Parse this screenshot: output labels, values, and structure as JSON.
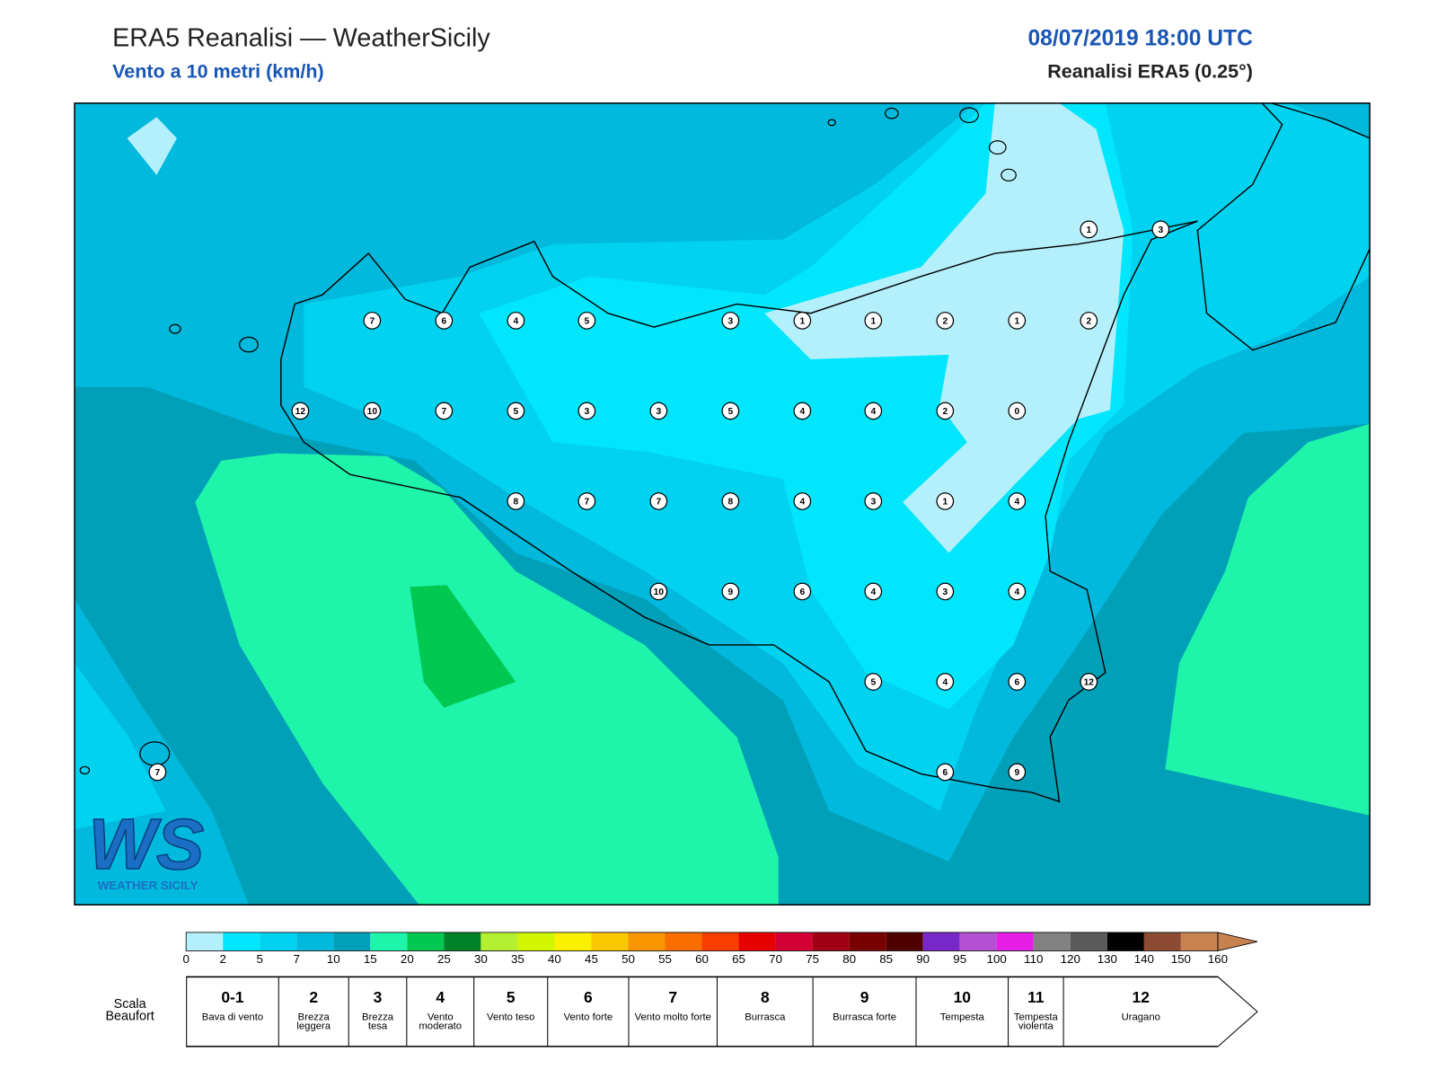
{
  "header": {
    "title": "ERA5 Reanalisi — WeatherSicily",
    "subtitle": "Vento a 10 metri (km/h)",
    "datetime": "08/07/2019 18:00 UTC",
    "source": "Reanalisi ERA5 (0.25°)"
  },
  "stations": [
    1,
    3,
    7,
    6,
    4,
    5,
    3,
    1,
    1,
    2,
    1,
    2,
    12,
    10,
    7,
    5,
    3,
    3,
    5,
    4,
    4,
    2,
    0,
    8,
    7,
    7,
    8,
    4,
    3,
    1,
    4,
    10,
    9,
    6,
    4,
    3,
    4,
    5,
    4,
    6,
    12,
    7,
    6,
    9
  ],
  "colorbar": {
    "ticks": [
      0,
      2,
      5,
      7,
      10,
      15,
      20,
      25,
      30,
      35,
      40,
      45,
      50,
      55,
      60,
      65,
      70,
      75,
      80,
      85,
      90,
      95,
      100,
      110,
      120,
      130,
      140,
      150,
      160
    ],
    "colors": [
      "#b4f0fc",
      "#00e6fc",
      "#00d2f0",
      "#00b9dc",
      "#00a0b9",
      "#1ef5aa",
      "#00c850",
      "#008228",
      "#b4f032",
      "#d2f500",
      "#faf000",
      "#fac800",
      "#fa9600",
      "#fa6e00",
      "#fa3c00",
      "#e60000",
      "#d20032",
      "#a00014",
      "#780000",
      "#500000",
      "#7828c8",
      "#b450d2",
      "#e61ee6",
      "#828282",
      "#5a5a5a",
      "#000000",
      "#8c4b32",
      "#c88250"
    ]
  },
  "beaufort": {
    "label": "Scala Beaufort",
    "levels": [
      {
        "force": "0-1",
        "name": "Bava di vento"
      },
      {
        "force": "2",
        "name": "Brezza leggera"
      },
      {
        "force": "3",
        "name": "Brezza tesa"
      },
      {
        "force": "4",
        "name": "Vento moderato"
      },
      {
        "force": "5",
        "name": "Vento teso"
      },
      {
        "force": "6",
        "name": "Vento forte"
      },
      {
        "force": "7",
        "name": "Vento molto forte"
      },
      {
        "force": "8",
        "name": "Burrasca"
      },
      {
        "force": "9",
        "name": "Burrasca forte"
      },
      {
        "force": "10",
        "name": "Tempesta"
      },
      {
        "force": "11",
        "name": "Tempesta violenta"
      },
      {
        "force": "12",
        "name": "Uragano"
      }
    ]
  },
  "logo": {
    "mark": "WS",
    "text": "WEATHER SICILY"
  }
}
